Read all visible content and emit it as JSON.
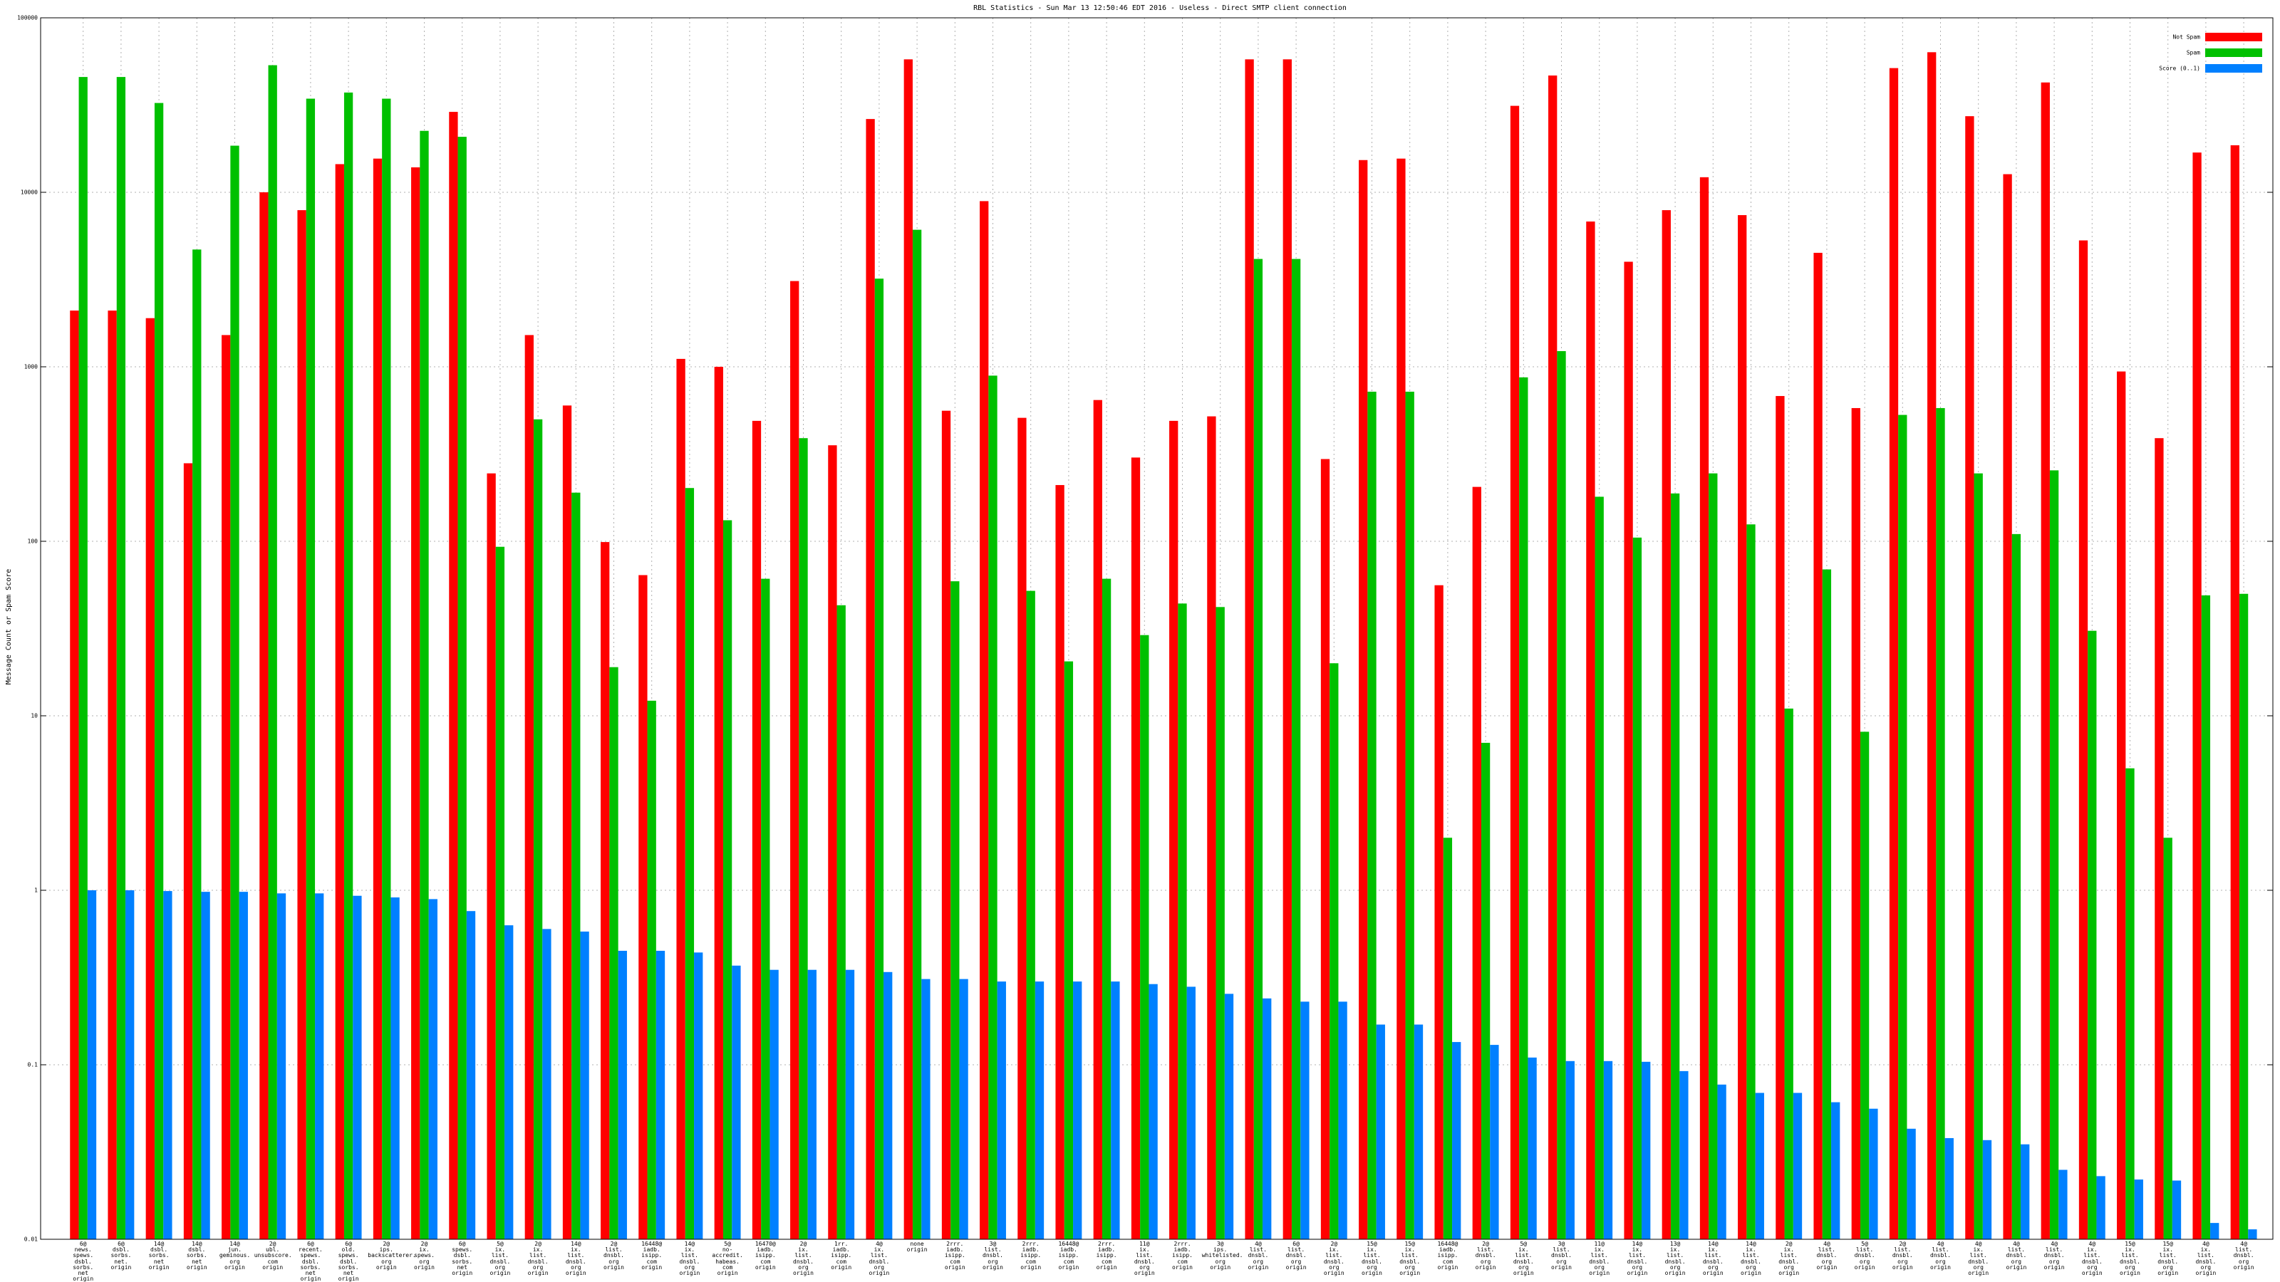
{
  "chart_data": {
    "type": "bar",
    "title": "RBL Statistics - Sun Mar 13 12:50:46 EDT 2016 - Useless - Direct SMTP client connection",
    "ylabel": "Message Count or Spam Score",
    "yscale": "log",
    "grid": true,
    "legend": "upper right",
    "ylim": [
      0.01,
      100000
    ],
    "yticks": [
      0.01,
      0.1,
      1,
      10,
      100,
      1000,
      10000,
      100000
    ],
    "categories": [
      "6@\nnews.\nspews.\ndsbl.\nsorbs.\nnet\norigin",
      "6@\ndsbl.\nsorbs.\nnet.\norigin",
      "14@\ndsbl.\nsorbs.\nnet\norigin",
      "14@\ndsbl.\nsorbs.\nnet\norigin",
      "14@\njun.\ngeminous.\norg\norigin",
      "2@\nubl.\nunsubscore.\ncom\norigin",
      "6@\nrecent.\nspews.\ndsbl.\nsorbs.\nnet\norigin",
      "6@\nold.\nspews.\ndsbl.\nsorbs.\nnet\norigin",
      "2@\nips.\nbackscatterer.\norg\norigin",
      "2@\nix.\nspews.\norg\norigin",
      "6@\nspews.\ndsbl.\nsorbs.\nnet\norigin",
      "5@\nix.\nlist.\ndnsbl.\norg\norigin",
      "2@\nix.\nlist.\ndnsbl.\norg\norigin",
      "14@\nix.\nlist.\ndnsbl.\norg\norigin",
      "2@\nlist.\ndnsbl.\norg\norigin",
      "16448@\niadb.\nisipp.\ncom\norigin",
      "14@\nix.\nlist.\ndnsbl.\norg\norigin",
      "5@\nno-accredit.\nhabeas.\ncom\norigin",
      "16470@\niadb.\nisipp.\ncom\norigin",
      "2@\nix.\nlist.\ndnsbl.\norg\norigin",
      "1rr.\niadb.\nisipp.\ncom\norigin",
      "4@\nix.\nlist.\ndnsbl.\norg\norigin",
      "none\norigin",
      "2rrr.\niadb.\nisipp.\ncom\norigin",
      "3@\nlist.\ndnsbl.\norg\norigin",
      "2rrr.\niadb.\nisipp.\ncom\norigin",
      "16448@\niadb.\nisipp.\ncom\norigin",
      "2rrr.\niadb.\nisipp.\ncom\norigin",
      "11@\nix.\nlist.\ndnsbl.\norg\norigin",
      "2rrr.\niadb.\nisipp.\ncom\norigin",
      "3@\nips.\nwhitelisted.\norg\norigin",
      "4@\nlist.\ndnsbl.\norg\norigin",
      "6@\nlist.\ndnsbl.\norg\norigin",
      "2@\nix.\nlist.\ndnsbl.\norg\norigin",
      "15@\nix.\nlist.\ndnsbl.\norg\norigin",
      "15@\nix.\nlist.\ndnsbl.\norg\norigin",
      "16448@\niadb.\nisipp.\ncom\norigin",
      "2@\nlist.\ndnsbl.\norg\norigin",
      "5@\nix.\nlist.\ndnsbl.\norg\norigin",
      "3@\nlist.\ndnsbl.\norg\norigin",
      "11@\nix.\nlist.\ndnsbl.\norg\norigin",
      "14@\nix.\nlist.\ndnsbl.\norg\norigin",
      "13@\nix.\nlist.\ndnsbl.\norg\norigin",
      "14@\nix.\nlist.\ndnsbl.\norg\norigin",
      "14@\nix.\nlist.\ndnsbl.\norg\norigin",
      "2@\nix.\nlist.\ndnsbl.\norg\norigin",
      "4@\nlist.\ndnsbl.\norg\norigin",
      "5@\nlist.\ndnsbl.\norg\norigin",
      "2@\nlist.\ndnsbl.\norg\norigin",
      "4@\nlist.\ndnsbl.\norg\norigin",
      "4@\nix.\nlist.\ndnsbl.\norg\norigin",
      "4@\nlist.\ndnsbl.\norg\norigin",
      "4@\nlist.\ndnsbl.\norg\norigin",
      "4@\nix.\nlist.\ndnsbl.\norg\norigin",
      "15@\nix.\nlist.\ndnsbl.\norg\norigin",
      "15@\nix.\nlist.\ndnsbl.\norg\norigin",
      "4@\nix.\nlist.\ndnsbl.\norg\norigin",
      "4@\nlist.\ndnsbl.\norg\norigin"
    ],
    "series": [
      {
        "name": "Not Spam",
        "color": "#ff0000",
        "values": [
          2100,
          2100,
          1900,
          280,
          1520,
          10000,
          7900,
          14500,
          15600,
          13900,
          28900,
          245,
          1520,
          600,
          99,
          64,
          1110,
          1000,
          490,
          3100,
          355,
          26300,
          57800,
          560,
          8900,
          510,
          210,
          645,
          302,
          490,
          520,
          57800,
          57800,
          296,
          15300,
          15600,
          56,
          205,
          31300,
          46700,
          6800,
          4000,
          7900,
          12200,
          7400,
          680,
          4500,
          580,
          51500,
          63500,
          27300,
          12700,
          42600,
          5300,
          940,
          390,
          16900,
          18600
        ]
      },
      {
        "name": "Spam",
        "color": "#00c000",
        "values": [
          45800,
          45800,
          32500,
          4700,
          18500,
          53500,
          34400,
          37300,
          34400,
          22500,
          20800,
          93,
          500,
          190,
          19,
          12.2,
          202,
          132,
          61,
          390,
          43,
          3200,
          6100,
          59,
          890,
          52,
          20.5,
          61,
          29,
          44,
          42,
          4150,
          4150,
          20,
          720,
          720,
          2.0,
          7.0,
          870,
          1230,
          180,
          105,
          188,
          245,
          125,
          11,
          69,
          8.1,
          530,
          580,
          245,
          110,
          255,
          30.7,
          5.0,
          2.0,
          49,
          50
        ]
      },
      {
        "name": "Score (0..1)",
        "color": "#0080ff",
        "values": [
          1.0,
          1.0,
          0.99,
          0.98,
          0.98,
          0.96,
          0.96,
          0.93,
          0.91,
          0.89,
          0.76,
          0.63,
          0.6,
          0.58,
          0.45,
          0.45,
          0.44,
          0.37,
          0.35,
          0.35,
          0.35,
          0.34,
          0.31,
          0.31,
          0.3,
          0.3,
          0.3,
          0.3,
          0.29,
          0.28,
          0.255,
          0.24,
          0.23,
          0.23,
          0.17,
          0.17,
          0.135,
          0.13,
          0.11,
          0.105,
          0.105,
          0.104,
          0.092,
          0.077,
          0.069,
          0.069,
          0.061,
          0.056,
          0.043,
          0.038,
          0.037,
          0.035,
          0.025,
          0.023,
          0.022,
          0.0217,
          0.0124,
          0.0114
        ]
      }
    ]
  }
}
